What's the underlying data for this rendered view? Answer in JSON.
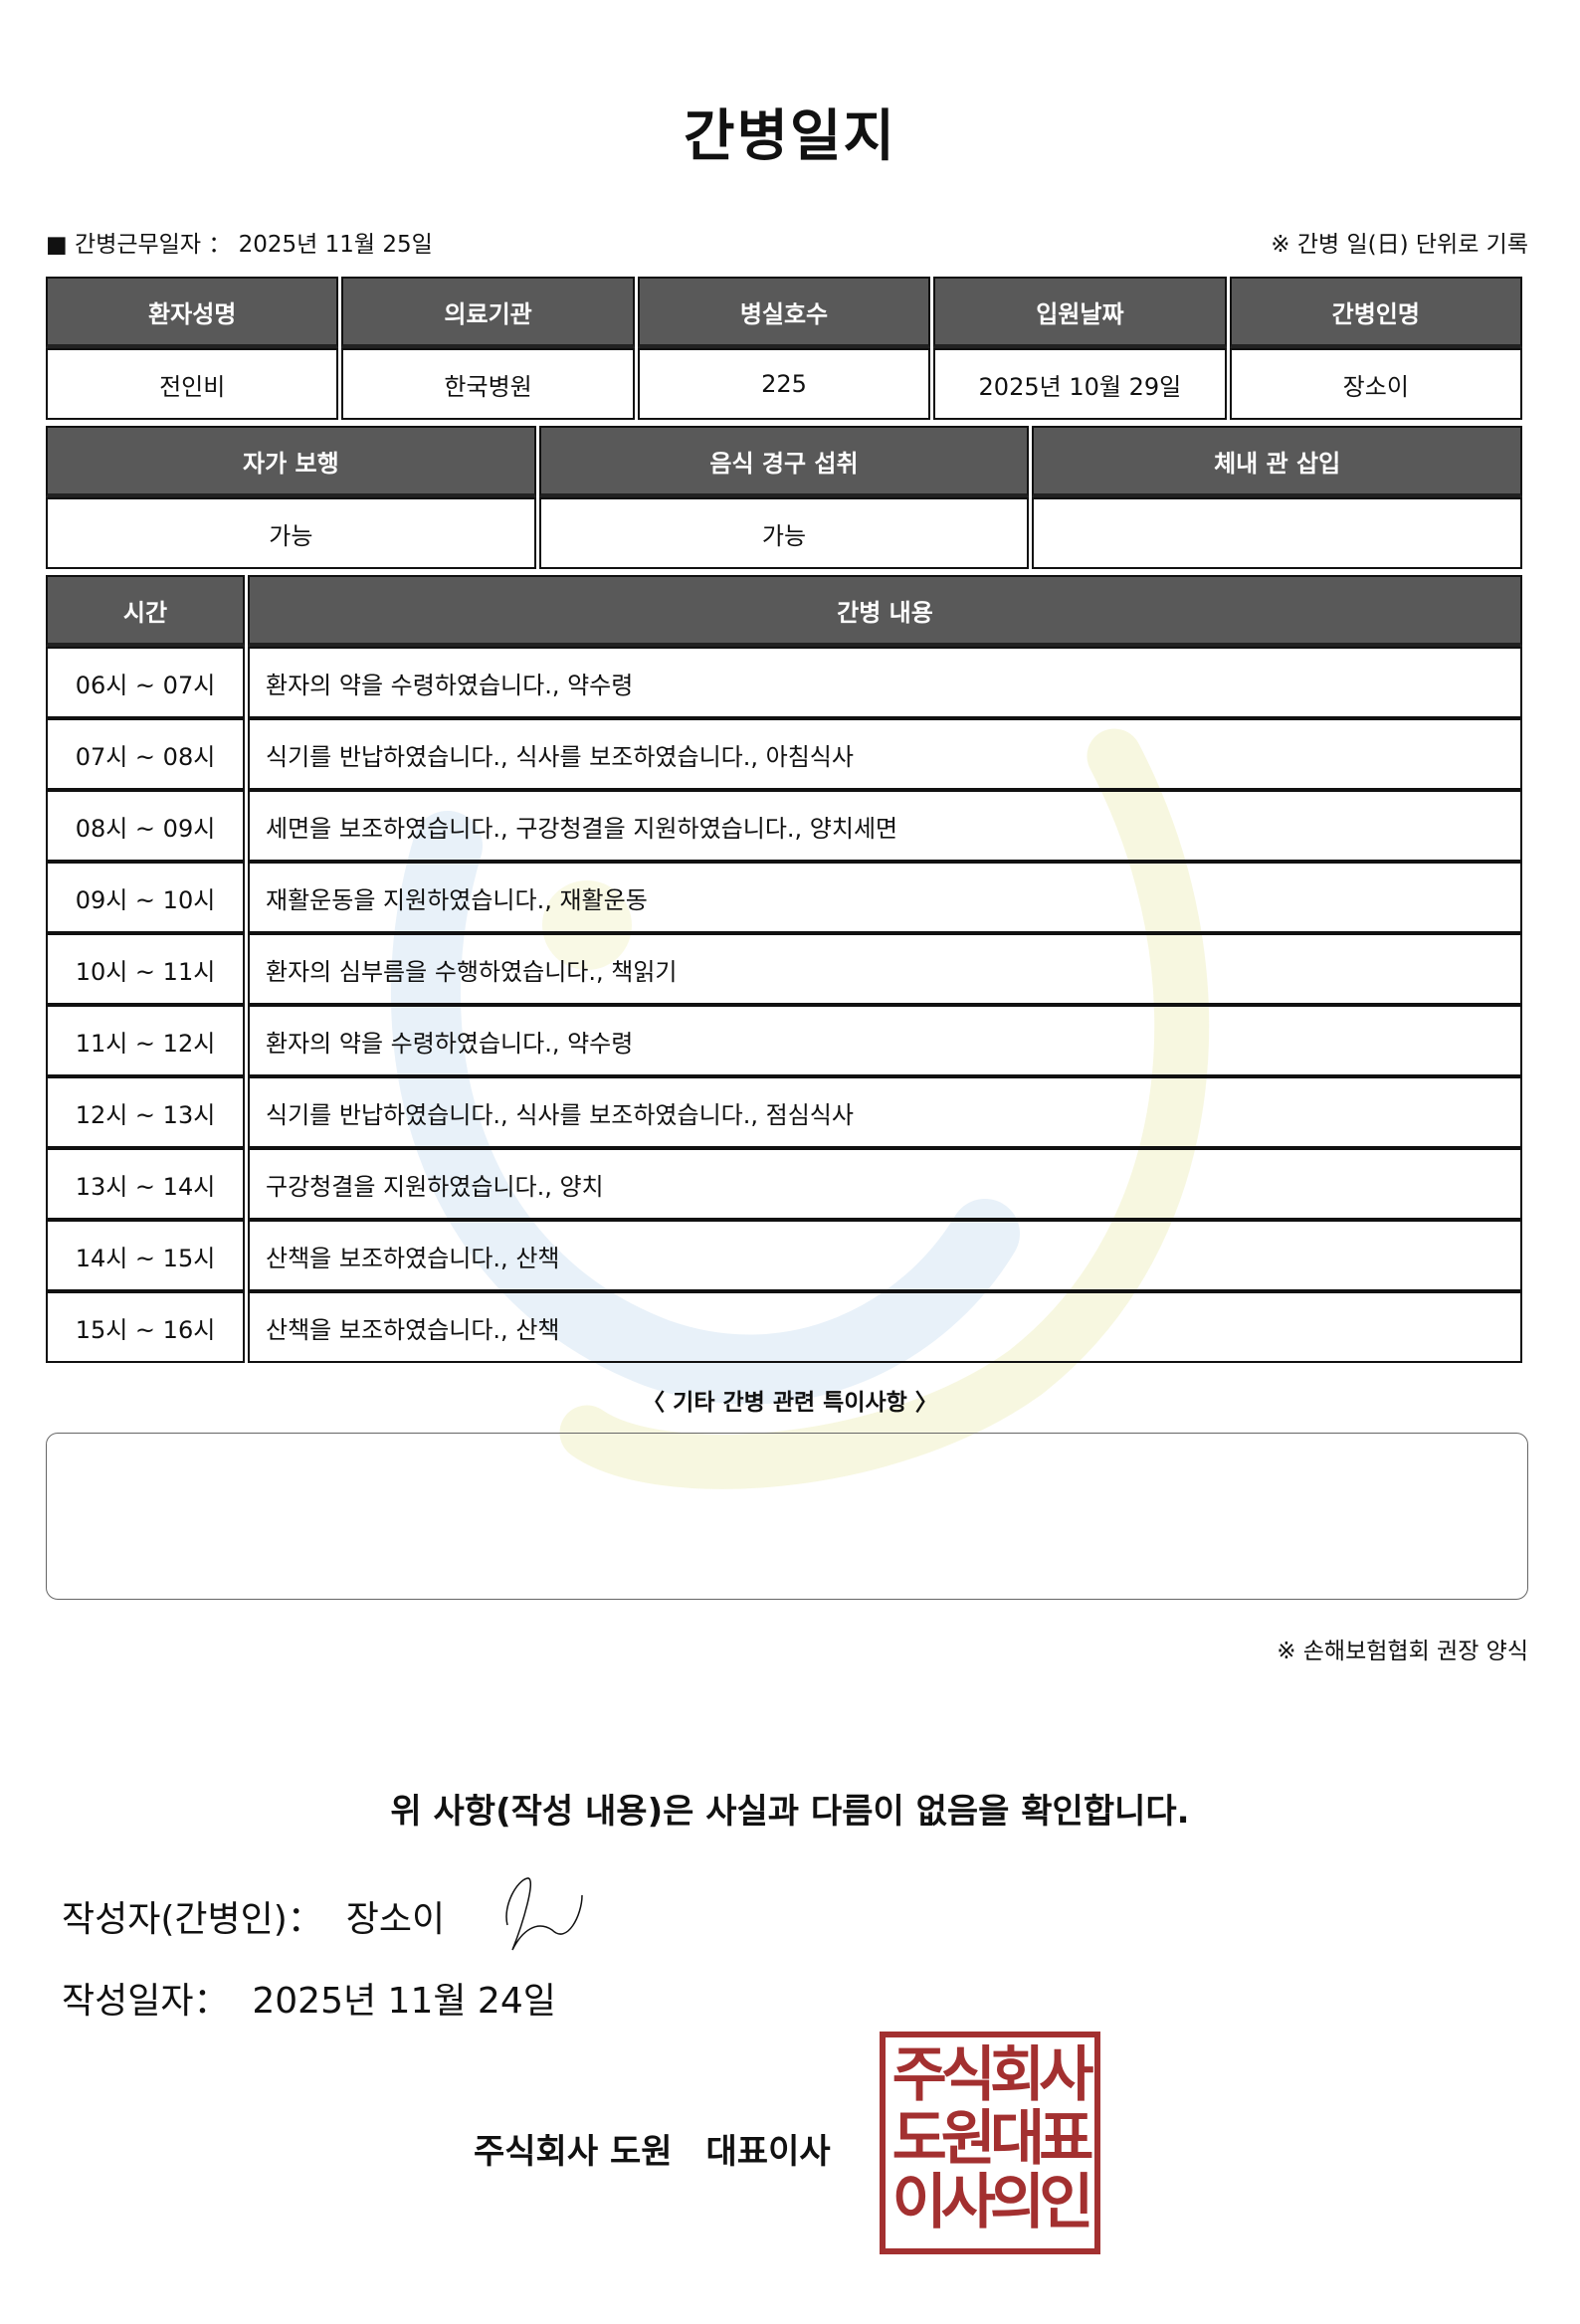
{
  "title": "간병일지",
  "info": {
    "label": "■ 간병근무일자 ：",
    "date": "2025년 11월 25일",
    "note": "※ 간병 일(日) 단위로 기록"
  },
  "table1": {
    "headers": [
      "환자성명",
      "의료기관",
      "병실호수",
      "입원날짜",
      "간병인명"
    ],
    "values": [
      "전인비",
      "한국병원",
      "225",
      "2025년 10월 29일",
      "장소이"
    ]
  },
  "table2": {
    "headers": [
      "자가 보행",
      "음식 경구 섭취",
      "체내 관 삽입"
    ],
    "values": [
      "가능",
      "가능",
      ""
    ]
  },
  "table3": {
    "headers": [
      "시간",
      "간병 내용"
    ],
    "rows": [
      [
        "06시 ~ 07시",
        "환자의 약을 수령하였습니다., 약수령"
      ],
      [
        "07시 ~ 08시",
        "식기를 반납하였습니다., 식사를 보조하였습니다., 아침식사"
      ],
      [
        "08시 ~ 09시",
        "세면을 보조하였습니다., 구강청결을 지원하였습니다., 양치세면"
      ],
      [
        "09시 ~ 10시",
        "재활운동을 지원하였습니다., 재활운동"
      ],
      [
        "10시 ~ 11시",
        "환자의 심부름을 수행하였습니다., 책읽기"
      ],
      [
        "11시 ~ 12시",
        "환자의 약을 수령하였습니다., 약수령"
      ],
      [
        "12시 ~ 13시",
        "식기를 반납하였습니다., 식사를 보조하였습니다., 점심식사"
      ],
      [
        "13시 ~ 14시",
        "구강청결을 지원하였습니다., 양치"
      ],
      [
        "14시 ~ 15시",
        "산책을 보조하였습니다., 산책"
      ],
      [
        "15시 ~ 16시",
        "산책을 보조하였습니다., 산책"
      ]
    ]
  },
  "notes": {
    "label": "〈 기타 간병 관련 특이사항 〉",
    "content": ""
  },
  "note_bottom": "※ 손해보험협회 권장 양식",
  "confirm": "위 사항(작성 내용)은 사실과 다름이 없음을 확인합니다.",
  "writer": {
    "label": "작성자(간병인)：",
    "name": "장소이"
  },
  "written_date": {
    "label": "작성일자：",
    "value": "2025년 11월 24일"
  },
  "company": "주식회사 도원　대표이사",
  "stamp_text": "주식회사도원대표이사의인",
  "colors": {
    "header_bg": "#595959",
    "stamp": "#a33030"
  }
}
